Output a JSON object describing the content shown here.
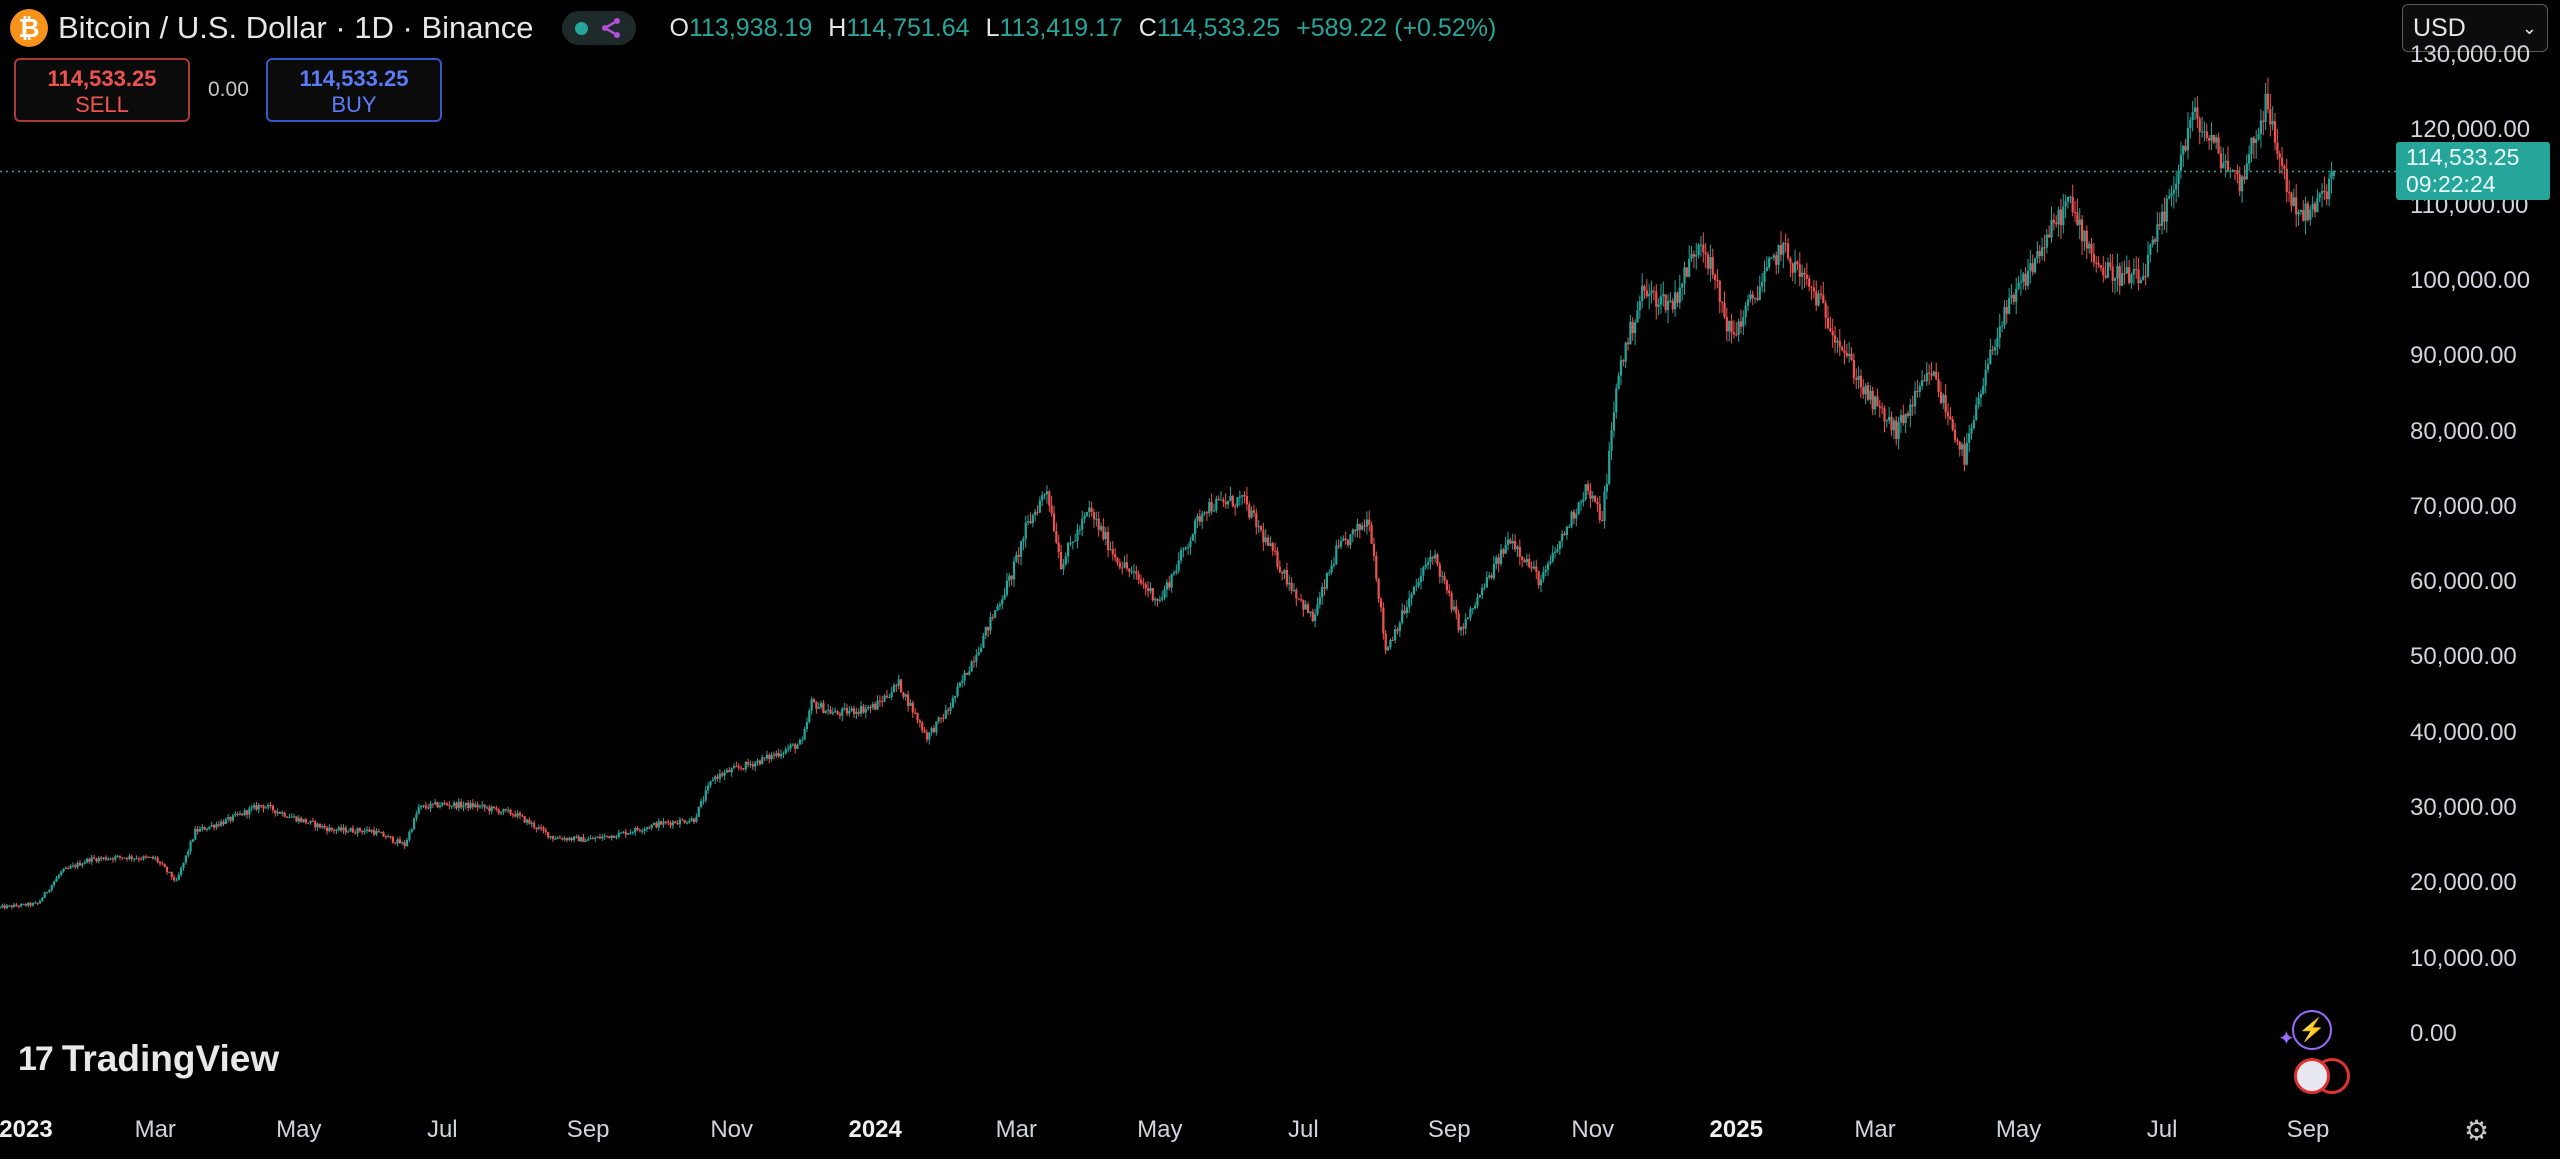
{
  "header": {
    "symbol_title": "Bitcoin / U.S. Dollar · 1D · Binance",
    "coin_icon": "bitcoin-icon",
    "ohlc": {
      "o_label": "O",
      "o_value": "113,938.19",
      "h_label": "H",
      "h_value": "114,751.64",
      "l_label": "L",
      "l_value": "113,419.17",
      "c_label": "C",
      "c_value": "114,533.25",
      "change": "+589.22 (+0.52%)"
    }
  },
  "trade": {
    "sell_price": "114,533.25",
    "sell_label": "SELL",
    "spread": "0.00",
    "buy_price": "114,533.25",
    "buy_label": "BUY"
  },
  "currency_select": {
    "value": "USD"
  },
  "price_tag": {
    "price": "114,533.25",
    "countdown": "09:22:24"
  },
  "branding": {
    "logo_text": "TradingView",
    "logo_mark": "17"
  },
  "colors": {
    "up": "#26a69a",
    "down": "#ef5350",
    "background": "#000000",
    "last_price_line": "#26a69a"
  },
  "chart_data": {
    "type": "candlestick",
    "title": "Bitcoin / U.S. Dollar · 1D · Binance",
    "interval": "1D",
    "ylim": [
      0,
      130000
    ],
    "y_ticks": [
      "0.00",
      "10,000.00",
      "20,000.00",
      "30,000.00",
      "40,000.00",
      "50,000.00",
      "60,000.00",
      "70,000.00",
      "80,000.00",
      "90,000.00",
      "100,000.00",
      "110,000.00",
      "120,000.00",
      "130,000.00"
    ],
    "x_ticks": [
      {
        "label": "2023",
        "date": "2023-01-01",
        "bold": true
      },
      {
        "label": "Mar",
        "date": "2023-03-01"
      },
      {
        "label": "May",
        "date": "2023-05-01"
      },
      {
        "label": "Jul",
        "date": "2023-07-01"
      },
      {
        "label": "Sep",
        "date": "2023-09-01"
      },
      {
        "label": "Nov",
        "date": "2023-11-01"
      },
      {
        "label": "2024",
        "date": "2024-01-01",
        "bold": true
      },
      {
        "label": "Mar",
        "date": "2024-03-01"
      },
      {
        "label": "May",
        "date": "2024-05-01"
      },
      {
        "label": "Jul",
        "date": "2024-07-01"
      },
      {
        "label": "Sep",
        "date": "2024-09-01"
      },
      {
        "label": "Nov",
        "date": "2024-11-01"
      },
      {
        "label": "2025",
        "date": "2025-01-01",
        "bold": true
      },
      {
        "label": "Mar",
        "date": "2025-03-01"
      },
      {
        "label": "May",
        "date": "2025-05-01"
      },
      {
        "label": "Jul",
        "date": "2025-07-01"
      },
      {
        "label": "Sep",
        "date": "2025-09-01"
      }
    ],
    "x_range": [
      "2022-12-25",
      "2025-10-08"
    ],
    "last_price": 114533.25,
    "grid": false,
    "close_path": [
      [
        "2022-12-25",
        16800
      ],
      [
        "2023-01-10",
        17300
      ],
      [
        "2023-01-20",
        21500
      ],
      [
        "2023-02-01",
        23200
      ],
      [
        "2023-02-15",
        23500
      ],
      [
        "2023-03-01",
        23300
      ],
      [
        "2023-03-10",
        20200
      ],
      [
        "2023-03-18",
        26900
      ],
      [
        "2023-04-01",
        28400
      ],
      [
        "2023-04-15",
        30400
      ],
      [
        "2023-05-01",
        28500
      ],
      [
        "2023-05-15",
        27100
      ],
      [
        "2023-06-01",
        27000
      ],
      [
        "2023-06-15",
        25100
      ],
      [
        "2023-06-21",
        30000
      ],
      [
        "2023-07-01",
        30500
      ],
      [
        "2023-07-15",
        30300
      ],
      [
        "2023-08-01",
        29200
      ],
      [
        "2023-08-17",
        26100
      ],
      [
        "2023-09-01",
        25800
      ],
      [
        "2023-09-15",
        26600
      ],
      [
        "2023-10-01",
        27900
      ],
      [
        "2023-10-16",
        28500
      ],
      [
        "2023-10-24",
        34000
      ],
      [
        "2023-11-01",
        35000
      ],
      [
        "2023-11-15",
        36500
      ],
      [
        "2023-12-01",
        38700
      ],
      [
        "2023-12-05",
        44000
      ],
      [
        "2023-12-15",
        42500
      ],
      [
        "2024-01-01",
        43500
      ],
      [
        "2024-01-11",
        46500
      ],
      [
        "2024-01-23",
        39500
      ],
      [
        "2024-02-01",
        43000
      ],
      [
        "2024-02-15",
        52000
      ],
      [
        "2024-02-28",
        61000
      ],
      [
        "2024-03-05",
        67000
      ],
      [
        "2024-03-14",
        72500
      ],
      [
        "2024-03-20",
        62500
      ],
      [
        "2024-04-01",
        69500
      ],
      [
        "2024-04-13",
        63000
      ],
      [
        "2024-05-01",
        57500
      ],
      [
        "2024-05-20",
        70000
      ],
      [
        "2024-06-05",
        71000
      ],
      [
        "2024-06-24",
        60500
      ],
      [
        "2024-07-05",
        55000
      ],
      [
        "2024-07-15",
        64000
      ],
      [
        "2024-07-29",
        68500
      ],
      [
        "2024-08-05",
        51000
      ],
      [
        "2024-08-25",
        64000
      ],
      [
        "2024-09-06",
        53500
      ],
      [
        "2024-09-27",
        66000
      ],
      [
        "2024-10-10",
        60000
      ],
      [
        "2024-10-29",
        72500
      ],
      [
        "2024-11-05",
        68500
      ],
      [
        "2024-11-12",
        88000
      ],
      [
        "2024-11-22",
        98500
      ],
      [
        "2024-12-05",
        97000
      ],
      [
        "2024-12-17",
        106000
      ],
      [
        "2024-12-30",
        92500
      ],
      [
        "2025-01-20",
        104500
      ],
      [
        "2025-02-05",
        97500
      ],
      [
        "2025-02-25",
        85000
      ],
      [
        "2025-03-10",
        80000
      ],
      [
        "2025-03-25",
        88000
      ],
      [
        "2025-04-08",
        76500
      ],
      [
        "2025-04-22",
        93500
      ],
      [
        "2025-05-10",
        104000
      ],
      [
        "2025-05-22",
        110500
      ],
      [
        "2025-06-05",
        101500
      ],
      [
        "2025-06-22",
        100000
      ],
      [
        "2025-07-03",
        109500
      ],
      [
        "2025-07-14",
        122000
      ],
      [
        "2025-07-25",
        117000
      ],
      [
        "2025-08-03",
        113000
      ],
      [
        "2025-08-14",
        123500
      ],
      [
        "2025-08-25",
        110500
      ],
      [
        "2025-09-01",
        108500
      ],
      [
        "2025-09-07",
        111000
      ],
      [
        "2025-09-12",
        114533
      ]
    ]
  },
  "icons": {
    "assistant": "lightning-icon",
    "flag": "us-flag-icon",
    "settings": "settings-icon",
    "dropdown": "chevron-down-icon",
    "indicator": "share-icon"
  }
}
